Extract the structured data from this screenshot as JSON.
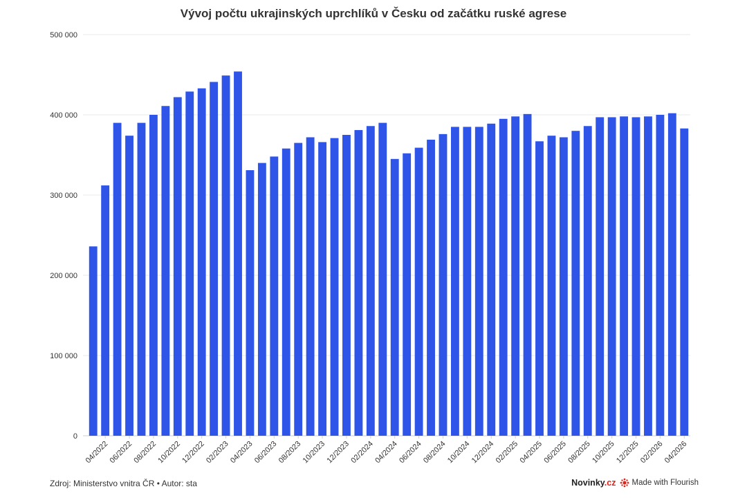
{
  "chart_data": {
    "type": "bar",
    "title": "Vývoj počtu ukrajinských uprchlíků v Česku od začátku ruské agrese",
    "xlabel": "",
    "ylabel": "",
    "ylim": [
      0,
      500000
    ],
    "y_ticks": [
      0,
      100000,
      200000,
      300000,
      400000,
      500000
    ],
    "y_tick_labels": [
      "0",
      "100 000",
      "200 000",
      "300 000",
      "400 000",
      "500 000"
    ],
    "grid": true,
    "color": "#2f55e8",
    "categories": [
      "03/2022",
      "04/2022",
      "05/2022",
      "06/2022",
      "07/2022",
      "08/2022",
      "09/2022",
      "10/2022",
      "11/2022",
      "12/2022",
      "01/2023",
      "02/2023",
      "03/2023",
      "04/2023",
      "05/2023",
      "06/2023",
      "07/2023",
      "08/2023",
      "09/2023",
      "10/2023",
      "11/2023",
      "12/2023",
      "01/2024",
      "02/2024",
      "03/2024",
      "04/2024",
      "05/2024",
      "06/2024",
      "07/2024",
      "08/2024",
      "09/2024",
      "10/2024",
      "11/2024",
      "12/2024",
      "01/2025",
      "02/2025",
      "03/2025",
      "04/2025",
      "05/2025",
      "06/2025",
      "07/2025",
      "08/2025",
      "09/2025",
      "10/2025",
      "11/2025",
      "12/2025",
      "01/2026",
      "02/2026",
      "03/2026",
      "04/2026"
    ],
    "x_tick_labels": [
      "04/2022",
      "06/2022",
      "08/2022",
      "10/2022",
      "12/2022",
      "02/2023",
      "04/2023",
      "06/2023",
      "08/2023",
      "10/2023",
      "12/2023",
      "02/2024",
      "04/2024",
      "06/2024",
      "08/2024",
      "10/2024",
      "12/2024",
      "02/2025",
      "04/2025",
      "06/2025",
      "08/2025",
      "10/2025",
      "12/2025",
      "02/2026",
      "04/2026"
    ],
    "values": [
      236000,
      312000,
      390000,
      374000,
      390000,
      400000,
      411000,
      422000,
      429000,
      433000,
      441000,
      449000,
      454000,
      331000,
      340000,
      348000,
      358000,
      365000,
      372000,
      366000,
      371000,
      375000,
      381000,
      386000,
      390000,
      345000,
      352000,
      359000,
      369000,
      376000,
      385000,
      385000,
      385000,
      389000,
      395000,
      398000,
      401000,
      367000,
      374000,
      372000,
      380000,
      386000,
      397000,
      397000,
      398000,
      397000,
      398000,
      400000,
      402000,
      383000
    ]
  },
  "footer": {
    "source": "Zdroj: Ministerstvo vnitra ČR • Autor: sta",
    "brand_prefix": "Novinky",
    "brand_suffix": ".cz",
    "flourish": "Made with Flourish"
  }
}
